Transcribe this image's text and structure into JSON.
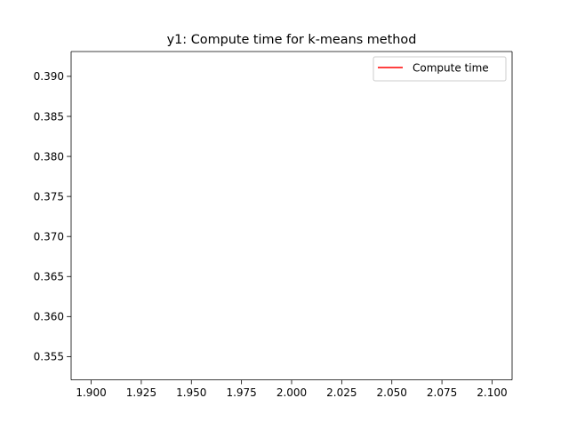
{
  "chart_data": {
    "type": "line",
    "title": "y1: Compute time for k-means method",
    "xlabel": "",
    "ylabel": "",
    "xlim": [
      1.89,
      2.11
    ],
    "ylim": [
      0.35209,
      0.3931
    ],
    "x_ticks": [
      "1.900",
      "1.925",
      "1.950",
      "1.975",
      "2.000",
      "2.025",
      "2.050",
      "2.075",
      "2.100"
    ],
    "x_tick_values": [
      1.9,
      1.925,
      1.95,
      1.975,
      2.0,
      2.025,
      2.05,
      2.075,
      2.1
    ],
    "y_ticks": [
      "0.355",
      "0.360",
      "0.365",
      "0.370",
      "0.375",
      "0.380",
      "0.385",
      "0.390"
    ],
    "y_tick_values": [
      0.355,
      0.36,
      0.365,
      0.37,
      0.375,
      0.38,
      0.385,
      0.39
    ],
    "series": [
      {
        "name": "Compute time",
        "color": "#ff0000",
        "x": [],
        "y": []
      }
    ],
    "legend": {
      "position": "upper-right"
    },
    "grid": false
  }
}
